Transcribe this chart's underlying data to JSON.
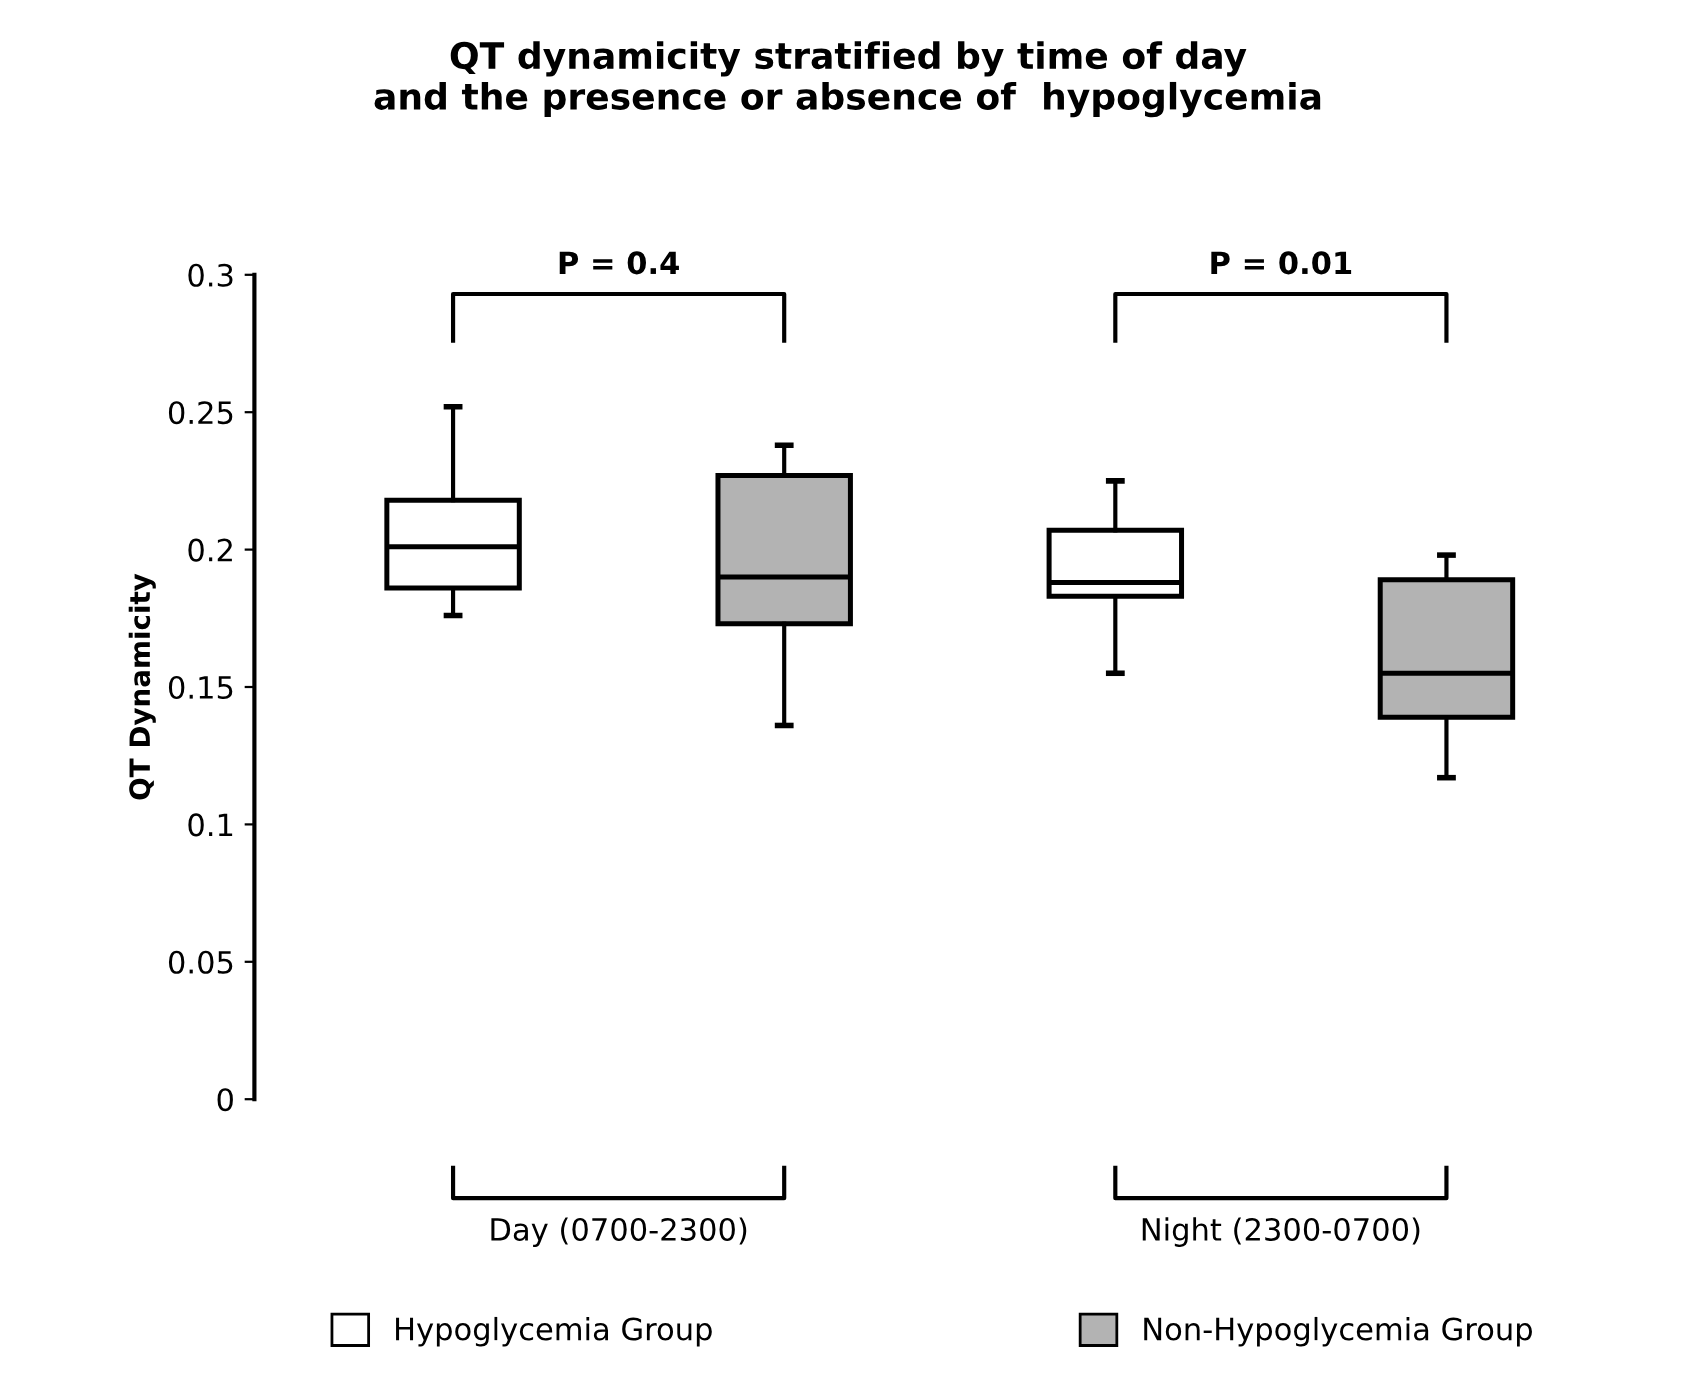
{
  "chart_data": {
    "type": "box",
    "title": "QT dynamicity stratified by time of day\nand the presence or absence of  hypoglycemia",
    "ylabel": "QT Dynamicity",
    "categories": [
      "Day (0700-2300)",
      "Night (2300-0700)"
    ],
    "series": [
      {
        "name": "Hypoglycemia Group",
        "color": "#ffffff",
        "boxes": [
          {
            "low": 0.176,
            "q1": 0.186,
            "median": 0.201,
            "q3": 0.218,
            "high": 0.252
          },
          {
            "low": 0.155,
            "q1": 0.183,
            "median": 0.188,
            "q3": 0.207,
            "high": 0.225
          }
        ]
      },
      {
        "name": "Non-Hypoglycemia Group",
        "color": "#b3b3b3",
        "boxes": [
          {
            "low": 0.136,
            "q1": 0.173,
            "median": 0.19,
            "q3": 0.227,
            "high": 0.238
          },
          {
            "low": 0.117,
            "q1": 0.139,
            "median": 0.155,
            "q3": 0.189,
            "high": 0.198
          }
        ]
      }
    ],
    "annotations": [
      "P = 0.4",
      "P = 0.01"
    ],
    "ylim": [
      0,
      0.3
    ],
    "yticks": [
      0,
      0.05,
      0.1,
      0.15,
      0.2,
      0.25,
      0.3
    ],
    "grid": false,
    "legend": "bottom"
  }
}
